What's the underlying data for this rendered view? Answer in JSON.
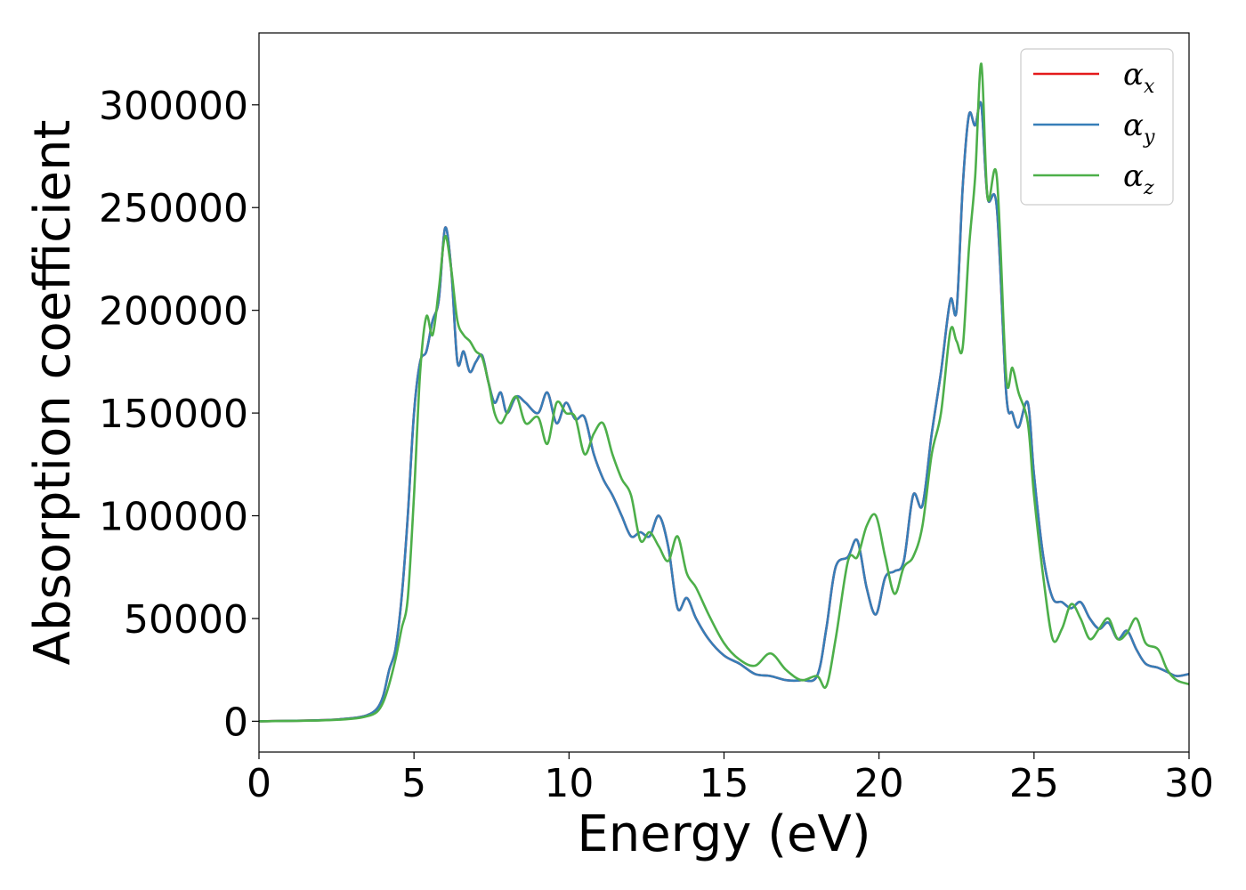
{
  "chart_data": {
    "type": "line",
    "title": "",
    "xlabel": "Energy (eV)",
    "ylabel": "Absorption coefficient",
    "xlim": [
      0,
      30
    ],
    "ylim": [
      -15000,
      335000
    ],
    "xticks": [
      0,
      5,
      10,
      15,
      20,
      25,
      30
    ],
    "xtick_labels": [
      "0",
      "5",
      "10",
      "15",
      "20",
      "25",
      "30"
    ],
    "yticks": [
      0,
      50000,
      100000,
      150000,
      200000,
      250000,
      300000
    ],
    "ytick_labels": [
      "0",
      "50000",
      "100000",
      "150000",
      "200000",
      "250000",
      "300000"
    ],
    "grid": false,
    "legend_position": "top-right",
    "series": [
      {
        "name": "αx",
        "symbol": "α",
        "subscript": "x",
        "color": "#e41a1c",
        "x": [
          0,
          2,
          3,
          3.5,
          3.8,
          4.0,
          4.2,
          4.4,
          4.6,
          4.8,
          5.0,
          5.2,
          5.4,
          5.6,
          5.8,
          6.0,
          6.2,
          6.4,
          6.6,
          6.8,
          7.0,
          7.2,
          7.4,
          7.6,
          7.8,
          8.0,
          8.3,
          8.6,
          9.0,
          9.3,
          9.6,
          9.9,
          10.2,
          10.5,
          10.8,
          11.1,
          11.4,
          11.7,
          12.0,
          12.3,
          12.6,
          12.9,
          13.2,
          13.5,
          13.8,
          14.1,
          14.5,
          15.0,
          15.5,
          16.0,
          16.5,
          17.0,
          17.5,
          18.0,
          18.3,
          18.6,
          19.0,
          19.3,
          19.6,
          19.9,
          20.2,
          20.5,
          20.8,
          21.1,
          21.4,
          21.7,
          22.0,
          22.3,
          22.5,
          22.7,
          22.9,
          23.1,
          23.3,
          23.5,
          23.8,
          24.1,
          24.3,
          24.5,
          24.8,
          25.0,
          25.3,
          25.6,
          25.9,
          26.2,
          26.5,
          26.8,
          27.1,
          27.4,
          27.7,
          28.0,
          28.3,
          28.6,
          29.0,
          29.3,
          29.6,
          30.0
        ],
        "y": [
          0,
          500,
          1500,
          3000,
          6000,
          12000,
          25000,
          35000,
          60000,
          100000,
          150000,
          175000,
          180000,
          195000,
          205000,
          240000,
          220000,
          175000,
          180000,
          170000,
          175000,
          178000,
          165000,
          155000,
          160000,
          150000,
          158000,
          155000,
          150000,
          160000,
          145000,
          155000,
          147000,
          148000,
          130000,
          118000,
          110000,
          100000,
          90000,
          92000,
          90000,
          100000,
          85000,
          55000,
          60000,
          50000,
          40000,
          32000,
          28000,
          23000,
          22000,
          20000,
          20000,
          22000,
          45000,
          75000,
          80000,
          88000,
          65000,
          52000,
          70000,
          73000,
          78000,
          110000,
          105000,
          140000,
          170000,
          205000,
          200000,
          260000,
          295000,
          290000,
          300000,
          255000,
          250000,
          160000,
          150000,
          143000,
          155000,
          120000,
          80000,
          60000,
          58000,
          55000,
          58000,
          50000,
          45000,
          48000,
          40000,
          44000,
          35000,
          28000,
          26000,
          24000,
          22000,
          23000
        ]
      },
      {
        "name": "αy",
        "symbol": "α",
        "subscript": "y",
        "color": "#377eb8",
        "x": [
          0,
          2,
          3,
          3.5,
          3.8,
          4.0,
          4.2,
          4.4,
          4.6,
          4.8,
          5.0,
          5.2,
          5.4,
          5.6,
          5.8,
          6.0,
          6.2,
          6.4,
          6.6,
          6.8,
          7.0,
          7.2,
          7.4,
          7.6,
          7.8,
          8.0,
          8.3,
          8.6,
          9.0,
          9.3,
          9.6,
          9.9,
          10.2,
          10.5,
          10.8,
          11.1,
          11.4,
          11.7,
          12.0,
          12.3,
          12.6,
          12.9,
          13.2,
          13.5,
          13.8,
          14.1,
          14.5,
          15.0,
          15.5,
          16.0,
          16.5,
          17.0,
          17.5,
          18.0,
          18.3,
          18.6,
          19.0,
          19.3,
          19.6,
          19.9,
          20.2,
          20.5,
          20.8,
          21.1,
          21.4,
          21.7,
          22.0,
          22.3,
          22.5,
          22.7,
          22.9,
          23.1,
          23.3,
          23.5,
          23.8,
          24.1,
          24.3,
          24.5,
          24.8,
          25.0,
          25.3,
          25.6,
          25.9,
          26.2,
          26.5,
          26.8,
          27.1,
          27.4,
          27.7,
          28.0,
          28.3,
          28.6,
          29.0,
          29.3,
          29.6,
          30.0
        ],
        "y": [
          0,
          500,
          1500,
          3000,
          6000,
          12000,
          25000,
          35000,
          60000,
          100000,
          150000,
          175000,
          180000,
          195000,
          205000,
          240000,
          220000,
          175000,
          180000,
          170000,
          175000,
          178000,
          165000,
          155000,
          160000,
          150000,
          158000,
          155000,
          150000,
          160000,
          145000,
          155000,
          147000,
          148000,
          130000,
          118000,
          110000,
          100000,
          90000,
          92000,
          90000,
          100000,
          85000,
          55000,
          60000,
          50000,
          40000,
          32000,
          28000,
          23000,
          22000,
          20000,
          20000,
          22000,
          45000,
          75000,
          80000,
          88000,
          65000,
          52000,
          70000,
          73000,
          78000,
          110000,
          105000,
          140000,
          170000,
          205000,
          200000,
          260000,
          295000,
          290000,
          300000,
          255000,
          250000,
          160000,
          150000,
          143000,
          155000,
          120000,
          80000,
          60000,
          58000,
          55000,
          58000,
          50000,
          45000,
          48000,
          40000,
          44000,
          35000,
          28000,
          26000,
          24000,
          22000,
          23000
        ]
      },
      {
        "name": "αz",
        "symbol": "α",
        "subscript": "z",
        "color": "#4daf4a",
        "x": [
          0,
          2,
          3,
          3.5,
          3.8,
          4.0,
          4.2,
          4.4,
          4.6,
          4.8,
          5.0,
          5.2,
          5.4,
          5.6,
          5.8,
          6.0,
          6.2,
          6.4,
          6.6,
          6.8,
          7.0,
          7.2,
          7.4,
          7.6,
          7.8,
          8.0,
          8.3,
          8.6,
          9.0,
          9.3,
          9.6,
          9.9,
          10.2,
          10.5,
          10.8,
          11.1,
          11.4,
          11.7,
          12.0,
          12.3,
          12.6,
          12.9,
          13.2,
          13.5,
          13.8,
          14.1,
          14.5,
          15.0,
          15.5,
          16.0,
          16.5,
          17.0,
          17.5,
          18.0,
          18.3,
          18.6,
          19.0,
          19.3,
          19.6,
          19.9,
          20.2,
          20.5,
          20.8,
          21.1,
          21.4,
          21.7,
          22.0,
          22.3,
          22.5,
          22.7,
          22.9,
          23.1,
          23.3,
          23.5,
          23.8,
          24.1,
          24.3,
          24.5,
          24.8,
          25.0,
          25.3,
          25.6,
          25.9,
          26.2,
          26.5,
          26.8,
          27.1,
          27.4,
          27.7,
          28.0,
          28.3,
          28.6,
          29.0,
          29.3,
          29.6,
          30.0
        ],
        "y": [
          0,
          400,
          1200,
          2500,
          4500,
          9000,
          18000,
          30000,
          45000,
          60000,
          110000,
          170000,
          197000,
          188000,
          210000,
          236000,
          220000,
          195000,
          188000,
          185000,
          180000,
          177000,
          165000,
          150000,
          145000,
          150000,
          158000,
          145000,
          148000,
          135000,
          155000,
          150000,
          148000,
          130000,
          140000,
          145000,
          130000,
          118000,
          110000,
          88000,
          92000,
          85000,
          78000,
          90000,
          72000,
          65000,
          52000,
          38000,
          30000,
          27000,
          33000,
          25000,
          20000,
          22000,
          17000,
          40000,
          78000,
          80000,
          95000,
          100000,
          80000,
          62000,
          75000,
          80000,
          95000,
          130000,
          150000,
          190000,
          185000,
          182000,
          230000,
          265000,
          320000,
          255000,
          265000,
          168000,
          172000,
          160000,
          145000,
          110000,
          70000,
          40000,
          45000,
          57000,
          50000,
          40000,
          45000,
          50000,
          40000,
          43000,
          50000,
          38000,
          35000,
          25000,
          20000,
          18000
        ]
      }
    ]
  }
}
